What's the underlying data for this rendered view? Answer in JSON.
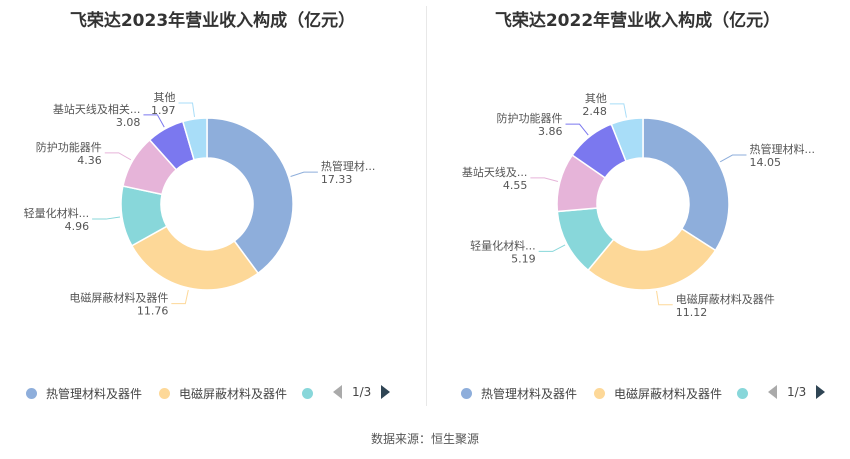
{
  "colors": [
    "#8eaedb",
    "#fdd898",
    "#88d7da",
    "#e6b4d9",
    "#7b78ef",
    "#a8ddf8"
  ],
  "legend_page_text": "1/3",
  "source": "数据来源：恒生聚源",
  "chart_data": [
    {
      "type": "pie",
      "title": "飞荣达2023年营业收入构成（亿元）",
      "series": [
        {
          "name": "热管理材料及器件",
          "label": "热管理材...",
          "value": 17.33
        },
        {
          "name": "电磁屏蔽材料及器件",
          "label": "电磁屏蔽材料及器件",
          "value": 11.76
        },
        {
          "name": "轻量化材料...",
          "label": "轻量化材料...",
          "value": 4.96
        },
        {
          "name": "防护功能器件",
          "label": "防护功能器件",
          "value": 4.36
        },
        {
          "name": "基站天线及相关...",
          "label": "基站天线及相关...",
          "value": 3.08
        },
        {
          "name": "其他",
          "label": "其他",
          "value": 1.97
        }
      ],
      "legend": [
        "热管理材料及器件",
        "电磁屏蔽材料及器件"
      ],
      "legend_placement": "bottom"
    },
    {
      "type": "pie",
      "title": "飞荣达2022年营业收入构成（亿元）",
      "series": [
        {
          "name": "热管理材料及器件",
          "label": "热管理材料...",
          "value": 14.05
        },
        {
          "name": "电磁屏蔽材料及器件",
          "label": "电磁屏蔽材料及器件",
          "value": 11.12
        },
        {
          "name": "轻量化材料...",
          "label": "轻量化材料...",
          "value": 5.19
        },
        {
          "name": "基站天线及...",
          "label": "基站天线及...",
          "value": 4.55
        },
        {
          "name": "防护功能器件",
          "label": "防护功能器件",
          "value": 3.86
        },
        {
          "name": "其他",
          "label": "其他",
          "value": 2.48
        }
      ],
      "legend": [
        "热管理材料及器件",
        "电磁屏蔽材料及器件"
      ],
      "legend_placement": "bottom"
    }
  ]
}
